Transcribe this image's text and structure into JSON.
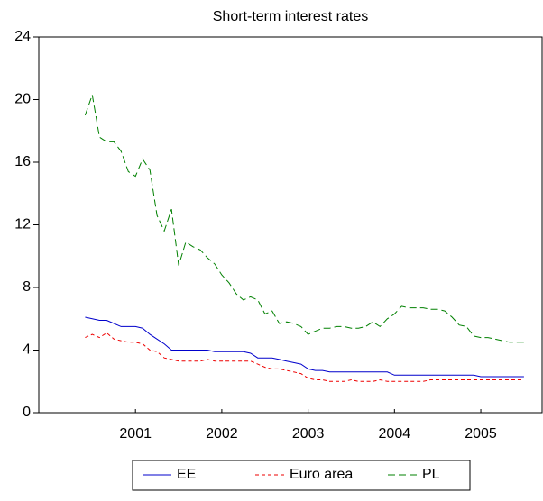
{
  "chart_data": {
    "type": "line",
    "title": "Short-term interest rates",
    "x": [
      2000.917,
      2001.0,
      2001.083,
      2001.167,
      2001.25,
      2001.333,
      2001.417,
      2001.5,
      2001.583,
      2001.667,
      2001.75,
      2001.833,
      2001.917,
      2002.0,
      2002.083,
      2002.167,
      2002.25,
      2002.333,
      2002.417,
      2002.5,
      2002.583,
      2002.667,
      2002.75,
      2002.833,
      2002.917,
      2003.0,
      2003.083,
      2003.167,
      2003.25,
      2003.333,
      2003.417,
      2003.5,
      2003.583,
      2003.667,
      2003.75,
      2003.833,
      2003.917,
      2004.0,
      2004.083,
      2004.167,
      2004.25,
      2004.333,
      2004.417,
      2004.5,
      2004.583,
      2004.667,
      2004.75,
      2004.833,
      2004.917,
      2005.0,
      2005.083,
      2005.167,
      2005.25,
      2005.333,
      2005.417,
      2005.5,
      2005.583,
      2005.667,
      2005.75,
      2005.833,
      2005.917,
      2006.0
    ],
    "series": [
      {
        "name": "EE",
        "color": "#0000cc",
        "dash": "none",
        "values": [
          6.1,
          6.0,
          5.9,
          5.9,
          5.7,
          5.5,
          5.5,
          5.5,
          5.4,
          5.0,
          4.7,
          4.4,
          4.0,
          4.0,
          4.0,
          4.0,
          4.0,
          4.0,
          3.9,
          3.9,
          3.9,
          3.9,
          3.9,
          3.8,
          3.5,
          3.5,
          3.5,
          3.4,
          3.3,
          3.2,
          3.1,
          2.8,
          2.7,
          2.7,
          2.6,
          2.6,
          2.6,
          2.6,
          2.6,
          2.6,
          2.6,
          2.6,
          2.6,
          2.4,
          2.4,
          2.4,
          2.4,
          2.4,
          2.4,
          2.4,
          2.4,
          2.4,
          2.4,
          2.4,
          2.4,
          2.3,
          2.3,
          2.3,
          2.3,
          2.3,
          2.3,
          2.3
        ]
      },
      {
        "name": "Euro area",
        "color": "#ee0000",
        "dash": "4,3",
        "values": [
          4.8,
          5.0,
          4.8,
          5.1,
          4.7,
          4.6,
          4.5,
          4.5,
          4.4,
          4.0,
          3.9,
          3.5,
          3.4,
          3.3,
          3.3,
          3.3,
          3.3,
          3.4,
          3.3,
          3.3,
          3.3,
          3.3,
          3.3,
          3.3,
          3.1,
          2.9,
          2.8,
          2.8,
          2.7,
          2.6,
          2.5,
          2.2,
          2.1,
          2.1,
          2.0,
          2.0,
          2.0,
          2.1,
          2.0,
          2.0,
          2.0,
          2.1,
          2.0,
          2.0,
          2.0,
          2.0,
          2.0,
          2.0,
          2.1,
          2.1,
          2.1,
          2.1,
          2.1,
          2.1,
          2.1,
          2.1,
          2.1,
          2.1,
          2.1,
          2.1,
          2.1,
          2.1
        ]
      },
      {
        "name": "PL",
        "color": "#008000",
        "dash": "8,4",
        "values": [
          19.0,
          20.3,
          17.6,
          17.3,
          17.3,
          16.7,
          15.4,
          15.1,
          16.2,
          15.5,
          12.6,
          11.6,
          13.0,
          9.4,
          10.9,
          10.6,
          10.4,
          9.9,
          9.5,
          8.8,
          8.3,
          7.6,
          7.2,
          7.4,
          7.2,
          6.3,
          6.5,
          5.7,
          5.8,
          5.7,
          5.5,
          5.0,
          5.2,
          5.4,
          5.4,
          5.5,
          5.5,
          5.4,
          5.4,
          5.5,
          5.8,
          5.5,
          6.0,
          6.3,
          6.8,
          6.7,
          6.7,
          6.7,
          6.6,
          6.6,
          6.5,
          6.1,
          5.6,
          5.5,
          4.9,
          4.8,
          4.8,
          4.7,
          4.6,
          4.5,
          4.5,
          4.5
        ]
      }
    ],
    "xlim": [
      2000.38,
      2006.21
    ],
    "xticks": [
      {
        "value": 2001.5,
        "label": "2001"
      },
      {
        "value": 2002.5,
        "label": "2002"
      },
      {
        "value": 2003.5,
        "label": "2003"
      },
      {
        "value": 2004.5,
        "label": "2004"
      },
      {
        "value": 2005.5,
        "label": "2005"
      }
    ],
    "ylim": [
      0,
      24
    ],
    "yticks": [
      0,
      4,
      8,
      12,
      16,
      20,
      24
    ],
    "grid": false,
    "legend": "bottom"
  }
}
